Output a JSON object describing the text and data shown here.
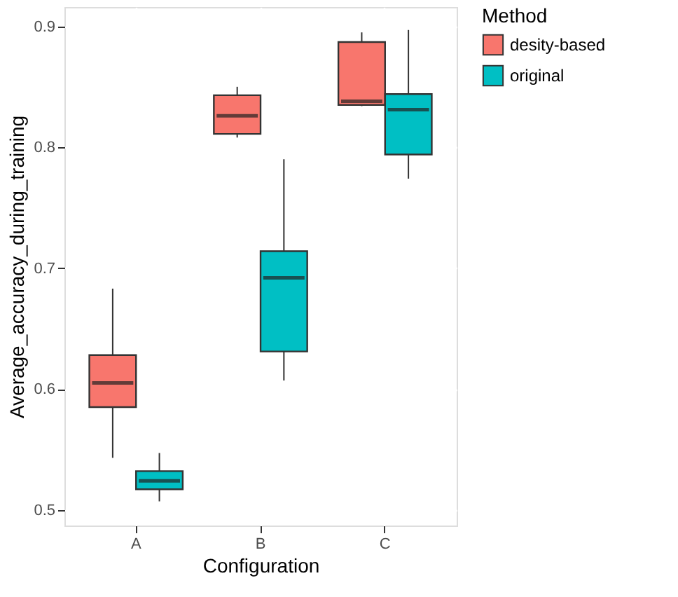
{
  "chart_data": {
    "type": "box",
    "xlabel": "Configuration",
    "ylabel": "Average_accuracy_during_training",
    "legend_title": "Method",
    "legend": "right",
    "grid": true,
    "categories": [
      "A",
      "B",
      "C"
    ],
    "ylim": [
      0.487,
      0.916
    ],
    "yticks": [
      0.5,
      0.6,
      0.7,
      0.8,
      0.9
    ],
    "series": [
      {
        "name": "desity-based",
        "color": "#f8766d",
        "boxes": [
          {
            "low": 0.543,
            "q1": 0.585,
            "median": 0.605,
            "q3": 0.628,
            "high": 0.683
          },
          {
            "low": 0.808,
            "q1": 0.811,
            "median": 0.826,
            "q3": 0.843,
            "high": 0.85
          },
          {
            "low": 0.834,
            "q1": 0.835,
            "median": 0.838,
            "q3": 0.887,
            "high": 0.895
          }
        ]
      },
      {
        "name": "original",
        "color": "#00bfc4",
        "boxes": [
          {
            "low": 0.507,
            "q1": 0.517,
            "median": 0.524,
            "q3": 0.532,
            "high": 0.547
          },
          {
            "low": 0.607,
            "q1": 0.631,
            "median": 0.692,
            "q3": 0.714,
            "high": 0.79
          },
          {
            "low": 0.774,
            "q1": 0.794,
            "median": 0.831,
            "q3": 0.844,
            "high": 0.897
          }
        ]
      }
    ]
  }
}
